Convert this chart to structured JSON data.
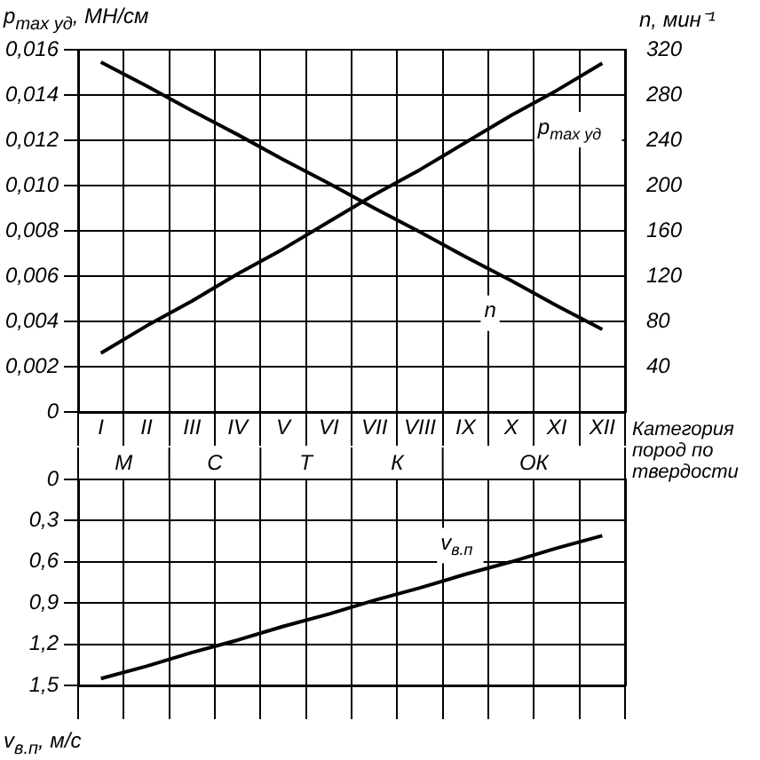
{
  "chart_data": [
    {
      "type": "line",
      "ylabel": "p$_{max уд}$, МН/см",
      "y2label": "n, мин⁻¹",
      "annotations": [
        "Категория пород по твердости"
      ],
      "categories": [
        "I",
        "II",
        "III",
        "IV",
        "V",
        "VI",
        "VII",
        "VIII",
        "IX",
        "X",
        "XI",
        "XII"
      ],
      "ylim": [
        0,
        0.016
      ],
      "yticks": [
        {
          "value": 0,
          "label": "0"
        },
        {
          "value": 0.002,
          "label": "0,002"
        },
        {
          "value": 0.004,
          "label": "0,004"
        },
        {
          "value": 0.006,
          "label": "0,006"
        },
        {
          "value": 0.008,
          "label": "0,008"
        },
        {
          "value": 0.01,
          "label": "0,010"
        },
        {
          "value": 0.012,
          "label": "0,012"
        },
        {
          "value": 0.014,
          "label": "0,014"
        },
        {
          "value": 0.016,
          "label": "0,016"
        }
      ],
      "y2lim": [
        0,
        320
      ],
      "y2ticks": [
        40,
        80,
        120,
        160,
        200,
        240,
        280,
        320
      ],
      "grid": true,
      "legend": false,
      "line_style": "solid",
      "series": [
        {
          "name": "p$_{max уд}$",
          "color": "#000000",
          "values": [
            0.0026,
            0.0038,
            0.0049,
            0.0061,
            0.0072,
            0.0084,
            0.0096,
            0.0107,
            0.0119,
            0.0131,
            0.0142,
            0.0154
          ]
        },
        {
          "name": "n",
          "color": "#000000",
          "axis": "y2",
          "values": [
            309,
            288,
            266,
            245,
            223,
            202,
            180,
            159,
            137,
            116,
            94,
            73
          ]
        }
      ]
    },
    {
      "type": "line",
      "ylabel": "v$_{в.п}$, м/с",
      "annotations": [
        "М",
        "С",
        "Т",
        "К",
        "ОК"
      ],
      "categories": [
        null,
        null,
        null,
        null,
        null,
        null,
        null,
        null,
        null,
        null,
        null,
        null
      ],
      "ylim": [
        1.5,
        0
      ],
      "yticks": [
        {
          "value": 0,
          "label": "0"
        },
        {
          "value": 0.3,
          "label": "0,3"
        },
        {
          "value": 0.6,
          "label": "0,6"
        },
        {
          "value": 0.9,
          "label": "0,9"
        },
        {
          "value": 1.2,
          "label": "1,2"
        },
        {
          "value": 1.5,
          "label": "1,5"
        }
      ],
      "grid": true,
      "legend": false,
      "line_style": "solid",
      "series": [
        {
          "name": "v$_{в.п}$",
          "color": "#000000",
          "values": [
            1.45,
            1.36,
            1.26,
            1.17,
            1.07,
            0.98,
            0.88,
            0.79,
            0.69,
            0.6,
            0.5,
            0.41
          ]
        }
      ]
    }
  ]
}
